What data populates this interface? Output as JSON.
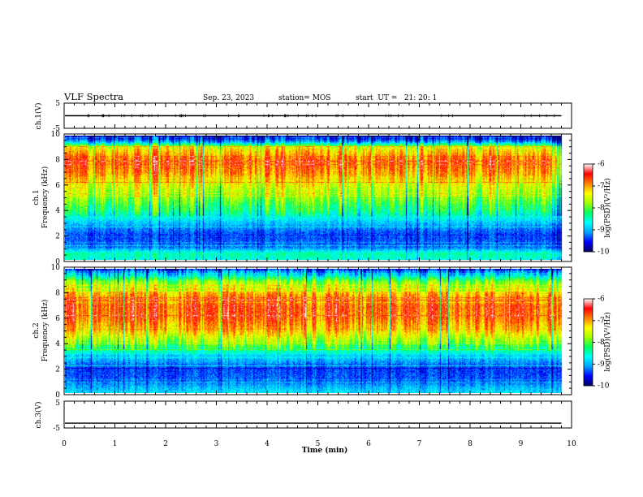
{
  "header": {
    "title": "VLF Spectra",
    "date": "Sep. 23, 2023",
    "station": "station= MOS",
    "start_ut": "start  UT =   21: 20: 1"
  },
  "chart_data": [
    {
      "type": "line",
      "panel": "ch1-voltage",
      "ylabel": "ch.1(V)",
      "ylim": [
        -5,
        5
      ],
      "y_ticklabels": [
        "5",
        "-5"
      ],
      "xlim": [
        0,
        10
      ],
      "series": [
        {
          "x": [
            0,
            9.8
          ],
          "values": [
            0,
            0
          ]
        }
      ]
    },
    {
      "type": "heatmap",
      "panel": "ch1-spectrogram",
      "ylabel_line1": "ch.1",
      "ylabel_line2": "Frequency (kHz)",
      "ylim": [
        0,
        10
      ],
      "y_ticklabels": [
        "0",
        "2",
        "4",
        "6",
        "8",
        "10"
      ],
      "xlim": [
        0,
        10
      ],
      "data_end_min": 9.8,
      "colorbar": {
        "label": "log(PSD)(V²/Hz)",
        "range": [
          -10,
          -6
        ],
        "ticklabels": [
          "-6",
          "-7",
          "-8",
          "-9",
          "-10"
        ],
        "colors": [
          "#000060",
          "#0000ff",
          "#00a0ff",
          "#00ffff",
          "#00ff60",
          "#a0ff00",
          "#ffff00",
          "#ff8000",
          "#ff0000",
          "#ffffff"
        ]
      },
      "band_profile": {
        "freq_khz": [
          0,
          0.5,
          1,
          2,
          3,
          4,
          5,
          6,
          7,
          8,
          9,
          9.5,
          10
        ],
        "log_psd": [
          -8.6,
          -8.4,
          -9.2,
          -9.4,
          -8.9,
          -8.2,
          -7.8,
          -7.4,
          -6.9,
          -6.7,
          -7.3,
          -9.0,
          -9.9
        ]
      }
    },
    {
      "type": "heatmap",
      "panel": "ch2-spectrogram",
      "ylabel_line1": "ch.2",
      "ylabel_line2": "Frequency (kHz)",
      "ylim": [
        0,
        10
      ],
      "y_ticklabels": [
        "0",
        "2",
        "4",
        "6",
        "8",
        "10"
      ],
      "xlim": [
        0,
        10
      ],
      "data_end_min": 9.8,
      "colorbar": {
        "label": "log(PSD)(V²/Hz)",
        "range": [
          -10,
          -6
        ],
        "ticklabels": [
          "-6",
          "-7",
          "-8",
          "-9",
          "-10"
        ],
        "colors": [
          "#000060",
          "#0000ff",
          "#00a0ff",
          "#00ffff",
          "#00ff60",
          "#a0ff00",
          "#ffff00",
          "#ff8000",
          "#ff0000",
          "#ffffff"
        ]
      },
      "band_profile": {
        "freq_khz": [
          0,
          0.5,
          1,
          2,
          3,
          4,
          5,
          6,
          7,
          8,
          9,
          9.5,
          10
        ],
        "log_psd": [
          -8.8,
          -9.0,
          -9.3,
          -9.4,
          -8.8,
          -7.9,
          -7.2,
          -6.8,
          -6.7,
          -7.1,
          -7.9,
          -8.8,
          -9.6
        ]
      }
    },
    {
      "type": "line",
      "panel": "ch3-voltage",
      "ylabel": "ch.3(V)",
      "ylim": [
        -5,
        5
      ],
      "y_ticklabels": [
        "5",
        "-5"
      ],
      "xlim": [
        0,
        10
      ],
      "series": [
        {
          "x": [
            0,
            9.8
          ],
          "values": [
            -3.2,
            -3.2
          ]
        }
      ]
    }
  ],
  "x_axis": {
    "label": "Time (min)",
    "ticklabels": [
      "0",
      "1",
      "2",
      "3",
      "4",
      "5",
      "6",
      "7",
      "8",
      "9",
      "10"
    ]
  }
}
